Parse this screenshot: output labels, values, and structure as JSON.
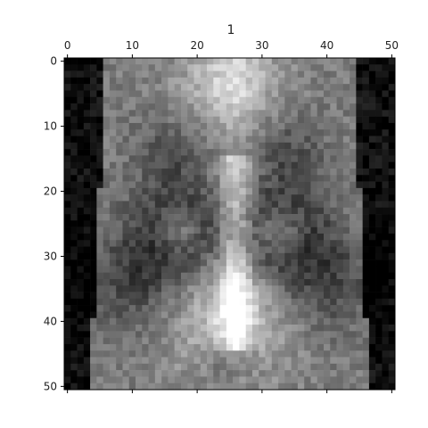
{
  "chart_data": {
    "type": "heatmap",
    "title": "1",
    "colormap": "gray",
    "grid": false,
    "x_axis": {
      "position": "top",
      "range": [
        -0.5,
        50.5
      ],
      "ticks": [
        0,
        10,
        20,
        30,
        40,
        50
      ]
    },
    "y_axis": {
      "position": "left",
      "range": [
        -0.5,
        50.5
      ],
      "inverted": true,
      "ticks": [
        0,
        10,
        20,
        30,
        40,
        50
      ]
    },
    "grid_size": {
      "rows": 51,
      "cols": 51
    },
    "description": ""
  }
}
